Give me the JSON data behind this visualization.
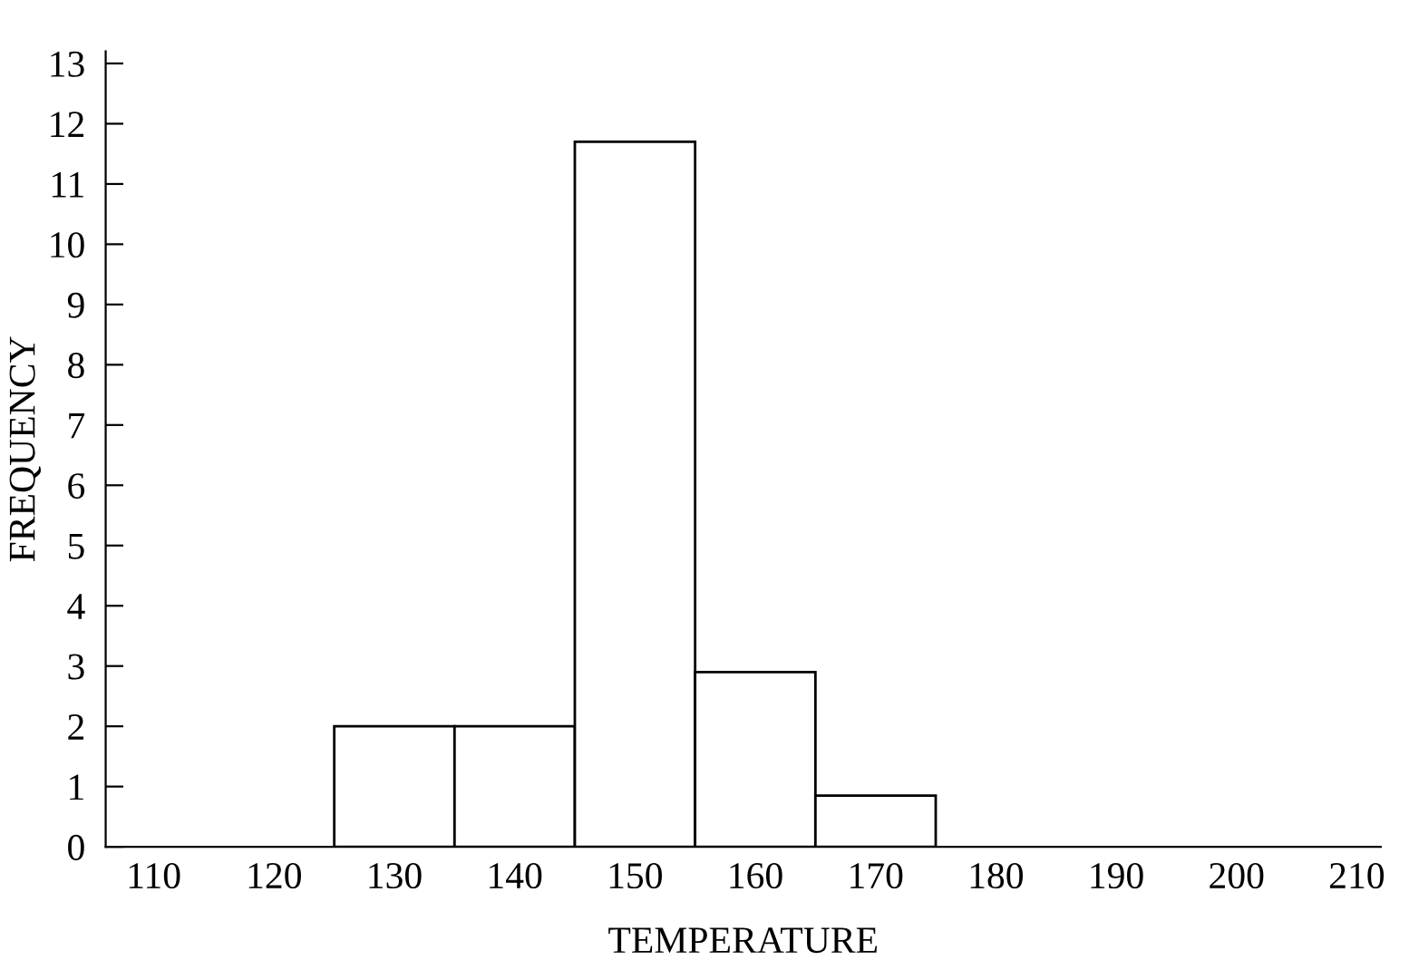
{
  "chart_data": {
    "type": "histogram",
    "xlabel": "TEMPERATURE",
    "ylabel": "FREQUENCY",
    "bins": [
      125,
      135,
      145,
      155,
      165,
      175
    ],
    "values": [
      2,
      2,
      11.7,
      2.9,
      0.85
    ],
    "color": "#ffffff",
    "xlim": [
      106,
      212
    ],
    "xticks": [
      110,
      120,
      130,
      140,
      150,
      160,
      170,
      180,
      190,
      200,
      210
    ],
    "ylim": [
      0,
      13.2
    ],
    "yticks": [
      0,
      1,
      2,
      3,
      4,
      5,
      6,
      7,
      8,
      9,
      10,
      11,
      12,
      13
    ],
    "grid": false,
    "legend": false
  }
}
